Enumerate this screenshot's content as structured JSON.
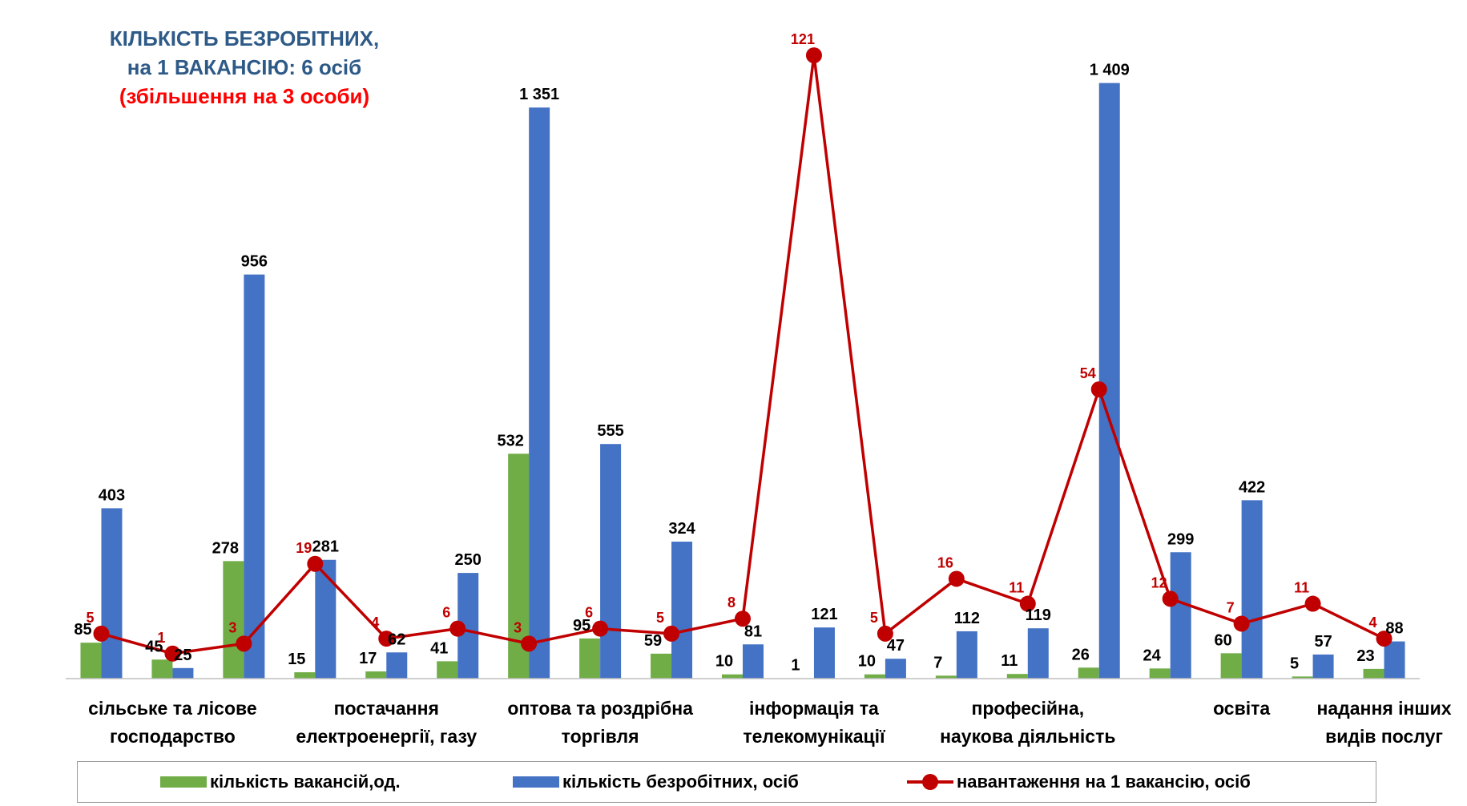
{
  "title": {
    "line1": "КІЛЬКІСТЬ БЕЗРОБІТНИХ,",
    "line2": "на 1 ВАКАНСІЮ: 6 осіб",
    "line3": "(збільшення на 3 особи)"
  },
  "colors": {
    "vacancies": "#70ad47",
    "unemployed": "#4472c4",
    "load": "#c00000",
    "title": "#2e5a87",
    "subtitle": "#ff0000"
  },
  "chart_data": {
    "type": "bar",
    "categories": [
      "",
      "",
      "",
      "",
      "",
      "",
      "",
      "",
      "",
      "",
      "",
      "",
      "",
      "",
      "",
      "",
      "",
      "",
      ""
    ],
    "category_labels": [
      [
        "сільське та  лісове",
        "господарство"
      ],
      [
        "постачання",
        "електроенергії, газу"
      ],
      [
        "оптова та роздрібна",
        "торгівля"
      ],
      [
        "інформація та",
        "телекомунікації"
      ],
      [
        "професійна,",
        "наукова діяльність"
      ],
      [
        "освіта",
        ""
      ],
      [
        "надання інших",
        "видів послуг"
      ]
    ],
    "series": [
      {
        "name": "кількість вакансій,од.",
        "type": "bar",
        "values": [
          85,
          45,
          278,
          15,
          17,
          41,
          532,
          95,
          59,
          10,
          1,
          10,
          7,
          11,
          26,
          24,
          60,
          5,
          23
        ]
      },
      {
        "name": "кількість безробітних, осіб",
        "type": "bar",
        "values": [
          403,
          25,
          956,
          281,
          62,
          250,
          1351,
          555,
          324,
          81,
          121,
          47,
          112,
          119,
          1409,
          299,
          422,
          57,
          88
        ],
        "value_labels": [
          "403",
          "25",
          "956",
          "281",
          "62",
          "250",
          "1 351",
          "555",
          "324",
          "81",
          "121",
          "47",
          "112",
          "119",
          "1 409",
          "299",
          "422",
          "57",
          "88"
        ]
      },
      {
        "name": "навантаження на 1 вакансію, осіб",
        "type": "line",
        "values": [
          5,
          1,
          3,
          19,
          4,
          6,
          3,
          6,
          5,
          8,
          121,
          5,
          16,
          11,
          54,
          12,
          7,
          11,
          4
        ]
      }
    ],
    "ylim": [
      0,
      1450
    ],
    "secondary_ylim": [
      0,
      126
    ],
    "grid": false,
    "legend": "bottom"
  },
  "legend": {
    "vacancies": "кількість вакансій,од.",
    "unemployed": "кількість безробітних, осіб",
    "load": "навантаження на 1 вакансію, осіб"
  }
}
